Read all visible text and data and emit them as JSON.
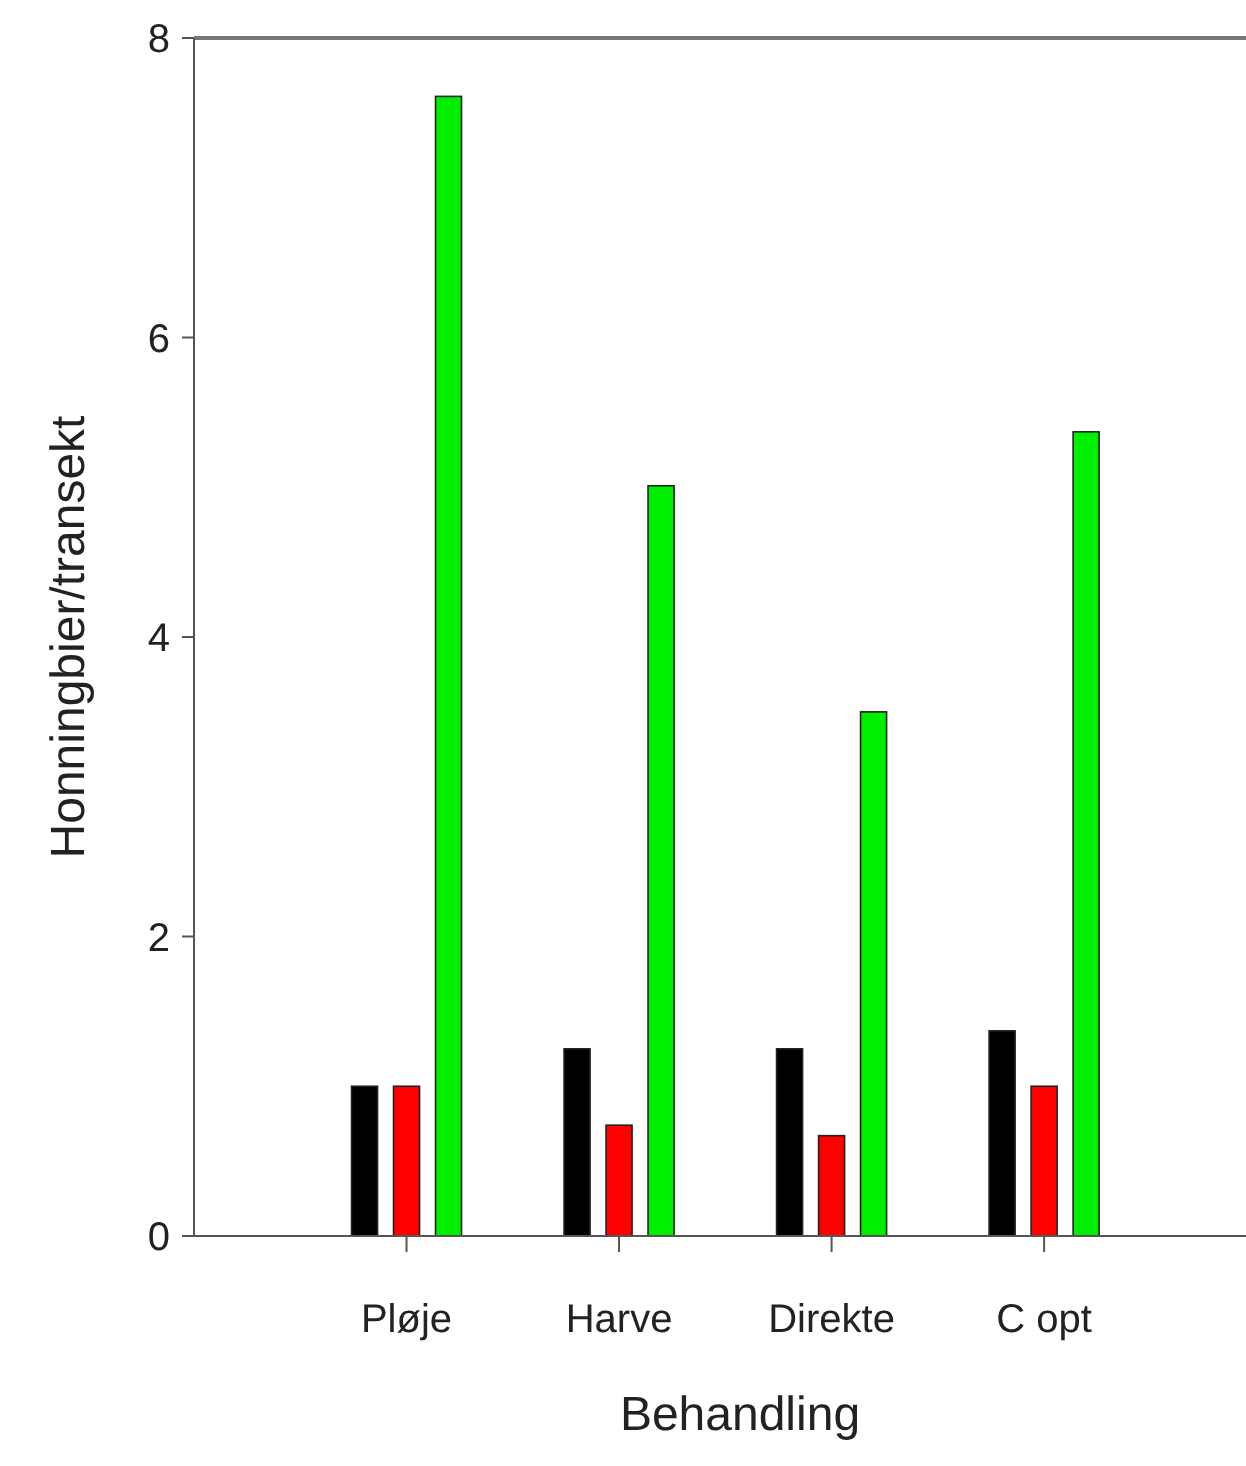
{
  "chart_data": {
    "type": "bar",
    "xlabel": "Behandling",
    "ylabel": "Honningbier/transekt",
    "categories": [
      "Pløje",
      "Harve",
      "Direkte",
      "C opt"
    ],
    "series": [
      {
        "color": "#000000",
        "values": [
          1.0,
          1.25,
          1.25,
          1.37
        ]
      },
      {
        "color": "#ff0000",
        "values": [
          1.0,
          0.74,
          0.67,
          1.0
        ]
      },
      {
        "color": "#00ee00",
        "values": [
          7.61,
          5.01,
          3.5,
          5.37
        ]
      }
    ],
    "ylim": [
      0,
      8
    ],
    "yticks": [
      0,
      2,
      4,
      6,
      8
    ]
  }
}
